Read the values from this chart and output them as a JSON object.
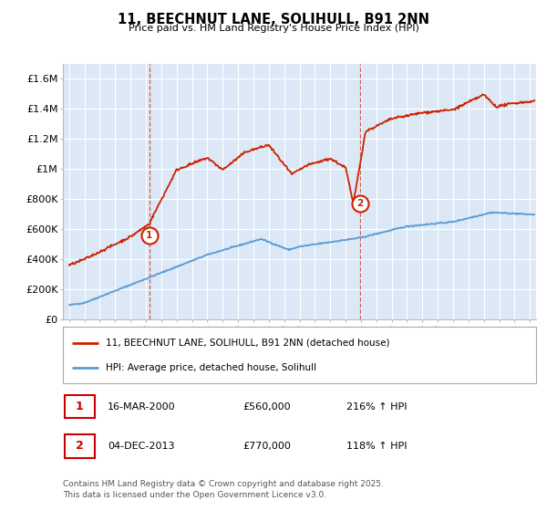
{
  "title": "11, BEECHNUT LANE, SOLIHULL, B91 2NN",
  "subtitle": "Price paid vs. HM Land Registry's House Price Index (HPI)",
  "red_label": "11, BEECHNUT LANE, SOLIHULL, B91 2NN (detached house)",
  "blue_label": "HPI: Average price, detached house, Solihull",
  "annotation1": {
    "num": "1",
    "date": "16-MAR-2000",
    "price": "£560,000",
    "hpi": "216% ↑ HPI"
  },
  "annotation2": {
    "num": "2",
    "date": "04-DEC-2013",
    "price": "£770,000",
    "hpi": "118% ↑ HPI"
  },
  "footnote": "Contains HM Land Registry data © Crown copyright and database right 2025.\nThis data is licensed under the Open Government Licence v3.0.",
  "ylim": [
    0,
    1700000
  ],
  "yticks": [
    0,
    200000,
    400000,
    600000,
    800000,
    1000000,
    1200000,
    1400000,
    1600000
  ],
  "ytick_labels": [
    "£0",
    "£200K",
    "£400K",
    "£600K",
    "£800K",
    "£1M",
    "£1.2M",
    "£1.4M",
    "£1.6M"
  ],
  "plot_bg_color": "#dce8f5",
  "sale1_x": 2000.21,
  "sale1_y": 560000,
  "sale2_x": 2013.92,
  "sale2_y": 770000,
  "vline1_x": 2000.21,
  "vline2_x": 2013.92,
  "xlim_left": 1994.6,
  "xlim_right": 2025.4
}
